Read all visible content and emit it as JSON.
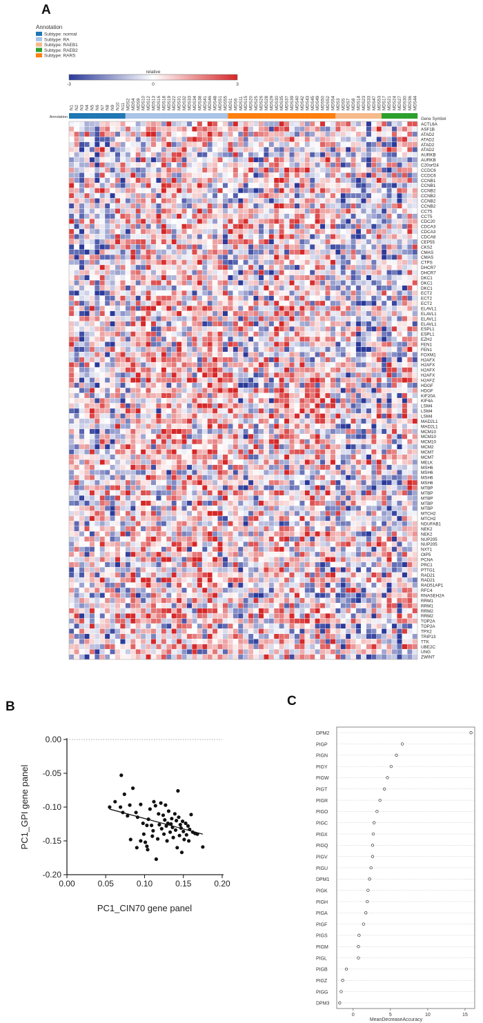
{
  "panels": {
    "a": {
      "letter": "A"
    },
    "b": {
      "letter": "B"
    },
    "c": {
      "letter": "C"
    }
  },
  "colors": {
    "normal": "#1f77b4",
    "RA": "#a9c4e6",
    "RAEB1": "#f6b98a",
    "RAEB2": "#2ca02c",
    "RARS": "#ff7f0e",
    "low": "#2b3a9a",
    "mid": "#ffffff",
    "high": "#d62728",
    "gray": "#888888"
  },
  "chart_data": [
    {
      "type": "heatmap",
      "legend": {
        "title": "Annotation",
        "entries": [
          {
            "key": "normal",
            "label": "Subtype: normal"
          },
          {
            "key": "RA",
            "label": "Subtype: RA"
          },
          {
            "key": "RAEB1",
            "label": "Subtype: RAEB1"
          },
          {
            "key": "RAEB2",
            "label": "Subtype: RAEB2"
          },
          {
            "key": "RARS",
            "label": "Subtype: RARS"
          }
        ]
      },
      "colorbar": {
        "label": "relative",
        "min": -3,
        "mid": 0,
        "max": 3,
        "ticks": [
          "-3",
          "0",
          "3"
        ]
      },
      "annotation_label": "Annotation",
      "row_header": "Gene Symbol",
      "columns": [
        {
          "id": "N1",
          "subtype": "normal"
        },
        {
          "id": "N2",
          "subtype": "normal"
        },
        {
          "id": "N3",
          "subtype": "normal"
        },
        {
          "id": "N4",
          "subtype": "normal"
        },
        {
          "id": "N5",
          "subtype": "normal"
        },
        {
          "id": "N6",
          "subtype": "normal"
        },
        {
          "id": "N7",
          "subtype": "normal"
        },
        {
          "id": "N8",
          "subtype": "normal"
        },
        {
          "id": "N9",
          "subtype": "normal"
        },
        {
          "id": "N10",
          "subtype": "normal"
        },
        {
          "id": "N11",
          "subtype": "normal"
        },
        {
          "id": "MDS2",
          "subtype": "RA"
        },
        {
          "id": "MDS4",
          "subtype": "RA"
        },
        {
          "id": "MDS9",
          "subtype": "RA"
        },
        {
          "id": "MDS10",
          "subtype": "RA"
        },
        {
          "id": "MDS12",
          "subtype": "RA"
        },
        {
          "id": "MDS13",
          "subtype": "RA"
        },
        {
          "id": "MDS16",
          "subtype": "RA"
        },
        {
          "id": "MDS18",
          "subtype": "RA"
        },
        {
          "id": "MDS19",
          "subtype": "RA"
        },
        {
          "id": "MDS22",
          "subtype": "RA"
        },
        {
          "id": "MDS31",
          "subtype": "RA"
        },
        {
          "id": "MDS32",
          "subtype": "RA"
        },
        {
          "id": "MDS33",
          "subtype": "RA"
        },
        {
          "id": "MDS34",
          "subtype": "RA"
        },
        {
          "id": "MDS38",
          "subtype": "RA"
        },
        {
          "id": "MDS41",
          "subtype": "RA"
        },
        {
          "id": "MDS46",
          "subtype": "RA"
        },
        {
          "id": "MDS48",
          "subtype": "RA"
        },
        {
          "id": "MDS51",
          "subtype": "RA"
        },
        {
          "id": "MDS55",
          "subtype": "RA"
        },
        {
          "id": "MDS1",
          "subtype": "RARS"
        },
        {
          "id": "MDS6",
          "subtype": "RARS"
        },
        {
          "id": "MDS11",
          "subtype": "RARS"
        },
        {
          "id": "MDS15",
          "subtype": "RARS"
        },
        {
          "id": "MDS20",
          "subtype": "RARS"
        },
        {
          "id": "MDS25",
          "subtype": "RARS"
        },
        {
          "id": "MDS26",
          "subtype": "RARS"
        },
        {
          "id": "MDS28",
          "subtype": "RARS"
        },
        {
          "id": "MDS29",
          "subtype": "RARS"
        },
        {
          "id": "MDS30",
          "subtype": "RARS"
        },
        {
          "id": "MDS35",
          "subtype": "RARS"
        },
        {
          "id": "MDS37",
          "subtype": "RARS"
        },
        {
          "id": "MDS39",
          "subtype": "RARS"
        },
        {
          "id": "MDS40",
          "subtype": "RARS"
        },
        {
          "id": "MDS42",
          "subtype": "RARS"
        },
        {
          "id": "MDS43",
          "subtype": "RARS"
        },
        {
          "id": "MDS45",
          "subtype": "RARS"
        },
        {
          "id": "MDS49",
          "subtype": "RARS"
        },
        {
          "id": "MDS50",
          "subtype": "RARS"
        },
        {
          "id": "MDS52",
          "subtype": "RARS"
        },
        {
          "id": "MDS54",
          "subtype": "RARS"
        },
        {
          "id": "MDS3",
          "subtype": "RAEB1"
        },
        {
          "id": "MDS5",
          "subtype": "RAEB1"
        },
        {
          "id": "MDS7",
          "subtype": "RAEB1"
        },
        {
          "id": "MDS8",
          "subtype": "RAEB1"
        },
        {
          "id": "MDS14",
          "subtype": "RAEB1"
        },
        {
          "id": "MDS23",
          "subtype": "RAEB1"
        },
        {
          "id": "MDS33",
          "subtype": "RAEB1"
        },
        {
          "id": "MDS47",
          "subtype": "RAEB1"
        },
        {
          "id": "MDS53",
          "subtype": "RAEB1"
        },
        {
          "id": "MDS17",
          "subtype": "RAEB2"
        },
        {
          "id": "MDS21",
          "subtype": "RAEB2"
        },
        {
          "id": "MDS24",
          "subtype": "RAEB2"
        },
        {
          "id": "MDS27",
          "subtype": "RAEB2"
        },
        {
          "id": "MDS30",
          "subtype": "RAEB2"
        },
        {
          "id": "MDS36",
          "subtype": "RAEB2"
        },
        {
          "id": "MDS44",
          "subtype": "RAEB2"
        }
      ],
      "genes": [
        "ACTL6A",
        "ASF1B",
        "ATAD2",
        "ATAD2",
        "ATAD2",
        "ATAD2",
        "AURKB",
        "AURKB",
        "C20orf24",
        "CCDC6",
        "CCDC6",
        "CCNB1",
        "CCNB1",
        "CCNB2",
        "CCNB2",
        "CCNB2",
        "CCNB2",
        "CCT5",
        "CCT5",
        "CDC20",
        "CDCA3",
        "CDCA3",
        "CDCA8",
        "CEP55",
        "CKS2",
        "CMAS",
        "CMAS",
        "CTPS",
        "DHCR7",
        "DHCR7",
        "DKC1",
        "DKC1",
        "DKC1",
        "ECT2",
        "ECT2",
        "ECT2",
        "ELAVL1",
        "ELAVL1",
        "ELAVL1",
        "ELAVL1",
        "ESPL1",
        "ESPL1",
        "EZH2",
        "FEN1",
        "FEN1",
        "FOXM1",
        "H2AFX",
        "H2AFX",
        "H2AFX",
        "H2AFX",
        "H2AFZ",
        "HDGF",
        "HDGF",
        "KIF20A",
        "KIF4A",
        "LSM4",
        "LSM4",
        "LSM4",
        "MAD2L1",
        "MAD2L1",
        "MCM10",
        "MCM10",
        "MCM10",
        "MCM2",
        "MCM7",
        "MCM7",
        "MELK",
        "MSH6",
        "MSH6",
        "MSH6",
        "MSH6",
        "MTBP",
        "MTBP",
        "MTBP",
        "MTBP",
        "MTBP",
        "MTCH2",
        "MTCH2",
        "NDUFAB1",
        "NEK2",
        "NEK2",
        "NUP205",
        "NUP205",
        "NXT1",
        "OIP5",
        "PCNA",
        "PRC1",
        "PTTG1",
        "RAD21",
        "RAD21",
        "RAD51AP1",
        "RFC4",
        "RNASEH2A",
        "RRM1",
        "RRM1",
        "RRM2",
        "RRM2",
        "TOP2A",
        "TOP2A",
        "TPX2",
        "TRIP13",
        "TTK",
        "UBE2C",
        "UNG",
        "ZWINT"
      ]
    },
    {
      "type": "scatter",
      "xlabel": "PC1_CIN70 gene panel",
      "ylabel": "PC1_GPI gene panel",
      "xlim": [
        0.0,
        0.2
      ],
      "ylim": [
        -0.2,
        0.0
      ],
      "xticks": [
        0.0,
        0.05,
        0.1,
        0.15,
        0.2
      ],
      "yticks": [
        0.0,
        -0.05,
        -0.1,
        -0.15,
        -0.2
      ],
      "xtick_labels": [
        "0.00",
        "0.05",
        "0.10",
        "0.15",
        "0.20"
      ],
      "ytick_labels": [
        "0.00",
        "-0.05",
        "-0.10",
        "-0.15",
        "-0.20"
      ],
      "reference_line_y": 0.0,
      "trend": {
        "x": [
          0.055,
          0.175
        ],
        "y": [
          -0.103,
          -0.14
        ]
      },
      "points": [
        [
          0.07,
          -0.053
        ],
        [
          0.085,
          -0.072
        ],
        [
          0.074,
          -0.081
        ],
        [
          0.055,
          -0.1
        ],
        [
          0.062,
          -0.092
        ],
        [
          0.069,
          -0.1
        ],
        [
          0.072,
          -0.108
        ],
        [
          0.078,
          -0.113
        ],
        [
          0.081,
          -0.097
        ],
        [
          0.089,
          -0.108
        ],
        [
          0.091,
          -0.115
        ],
        [
          0.095,
          -0.096
        ],
        [
          0.098,
          -0.124
        ],
        [
          0.099,
          -0.14
        ],
        [
          0.101,
          -0.152
        ],
        [
          0.103,
          -0.158
        ],
        [
          0.104,
          -0.163
        ],
        [
          0.105,
          -0.118
        ],
        [
          0.107,
          -0.103
        ],
        [
          0.109,
          -0.127
        ],
        [
          0.111,
          -0.135
        ],
        [
          0.112,
          -0.092
        ],
        [
          0.114,
          -0.098
        ],
        [
          0.115,
          -0.177
        ],
        [
          0.117,
          -0.147
        ],
        [
          0.118,
          -0.11
        ],
        [
          0.119,
          -0.126
        ],
        [
          0.121,
          -0.094
        ],
        [
          0.122,
          -0.132
        ],
        [
          0.124,
          -0.112
        ],
        [
          0.125,
          -0.14
        ],
        [
          0.126,
          -0.119
        ],
        [
          0.128,
          -0.128
        ],
        [
          0.129,
          -0.15
        ],
        [
          0.13,
          -0.124
        ],
        [
          0.131,
          -0.106
        ],
        [
          0.133,
          -0.137
        ],
        [
          0.134,
          -0.125
        ],
        [
          0.135,
          -0.117
        ],
        [
          0.136,
          -0.13
        ],
        [
          0.137,
          -0.145
        ],
        [
          0.139,
          -0.11
        ],
        [
          0.14,
          -0.134
        ],
        [
          0.141,
          -0.12
        ],
        [
          0.142,
          -0.16
        ],
        [
          0.143,
          -0.076
        ],
        [
          0.144,
          -0.115
        ],
        [
          0.145,
          -0.142
        ],
        [
          0.146,
          -0.126
        ],
        [
          0.147,
          -0.131
        ],
        [
          0.148,
          -0.167
        ],
        [
          0.149,
          -0.121
        ],
        [
          0.15,
          -0.136
        ],
        [
          0.151,
          -0.148
        ],
        [
          0.153,
          -0.124
        ],
        [
          0.154,
          -0.141
        ],
        [
          0.156,
          -0.128
        ],
        [
          0.157,
          -0.15
        ],
        [
          0.158,
          -0.133
        ],
        [
          0.16,
          -0.111
        ],
        [
          0.162,
          -0.137
        ],
        [
          0.165,
          -0.139
        ],
        [
          0.168,
          -0.14
        ],
        [
          0.175,
          -0.159
        ],
        [
          0.09,
          -0.16
        ],
        [
          0.095,
          -0.15
        ],
        [
          0.082,
          -0.148
        ],
        [
          0.103,
          -0.127
        ],
        [
          0.11,
          -0.143
        ],
        [
          0.127,
          -0.097
        ]
      ]
    },
    {
      "type": "dotplot",
      "xlabel": "MeanDecreaseAccuracy",
      "xlim": [
        -2.2,
        16.3
      ],
      "xticks": [
        0,
        5,
        10,
        15
      ],
      "xtick_labels": [
        "0",
        "5",
        "10",
        "15"
      ],
      "categories": [
        "DPM2",
        "PIGP",
        "PIGN",
        "PIGY",
        "PIGW",
        "PIGT",
        "PIGR",
        "PIGO",
        "PIGC",
        "PIGX",
        "PIGQ",
        "PIGV",
        "PIGU",
        "DPM1",
        "PIGK",
        "PIGH",
        "PIGA",
        "PIGF",
        "PIGS",
        "PIGM",
        "PIGL",
        "PIGB",
        "PIGZ",
        "PIGG",
        "DPM3"
      ],
      "values": [
        15.8,
        6.6,
        5.8,
        5.1,
        4.6,
        4.2,
        3.6,
        3.2,
        2.8,
        2.7,
        2.6,
        2.6,
        2.4,
        2.2,
        2.0,
        1.9,
        1.7,
        1.4,
        0.8,
        0.7,
        0.7,
        -0.9,
        -1.4,
        -1.6,
        -1.8
      ]
    }
  ]
}
